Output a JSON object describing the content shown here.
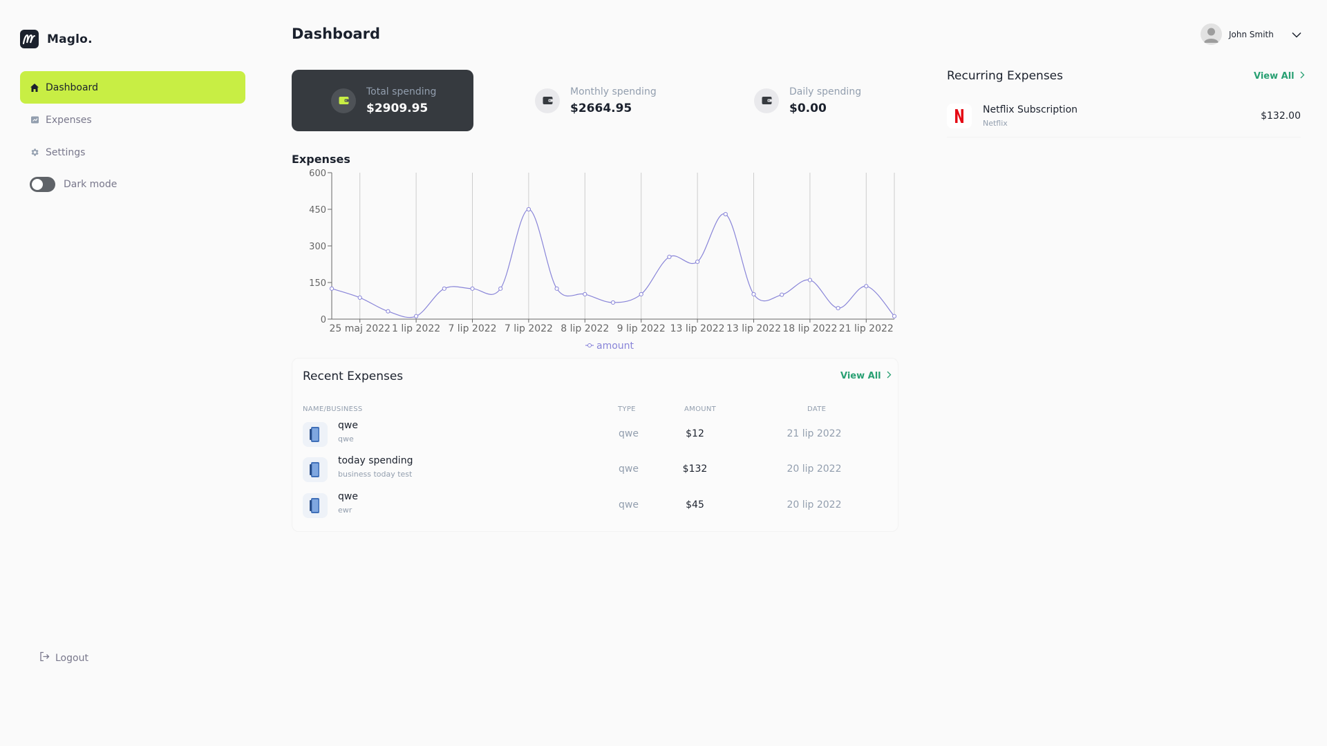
{
  "app": {
    "name": "Maglo."
  },
  "sidebar": {
    "items": [
      {
        "label": "Dashboard",
        "icon": "home-icon",
        "active": true
      },
      {
        "label": "Expenses",
        "icon": "expenses-icon",
        "active": false
      },
      {
        "label": "Settings",
        "icon": "gear-icon",
        "active": false
      }
    ],
    "dark_mode_label": "Dark mode",
    "dark_mode_on": false,
    "logout_label": "Logout"
  },
  "header": {
    "title": "Dashboard",
    "user_name": "John Smith"
  },
  "stats": [
    {
      "label": "Total spending",
      "value": "$2909.95"
    },
    {
      "label": "Monthly spending",
      "value": "$2664.95"
    },
    {
      "label": "Daily spending",
      "value": "$0.00"
    }
  ],
  "chart": {
    "title": "Expenses"
  },
  "chart_data": {
    "type": "line",
    "title": "Expenses",
    "xlabel": "",
    "ylabel": "",
    "ylim": [
      0,
      600
    ],
    "yticks": [
      "0",
      "150",
      "300",
      "450",
      "600"
    ],
    "x": [
      "",
      "25 maj 2022",
      "",
      "1 lip 2022",
      "",
      "7 lip 2022",
      "",
      "7 lip 2022",
      "",
      "8 lip 2022",
      "",
      "9 lip 2022",
      "",
      "13 lip 2022",
      "",
      "13 lip 2022",
      "",
      "18 lip 2022",
      "",
      "21 lip 2022",
      ""
    ],
    "series": [
      {
        "name": "amount",
        "values": [
          125,
          88,
          32,
          12,
          125,
          125,
          125,
          450,
          125,
          102,
          68,
          102,
          255,
          235,
          430,
          102,
          100,
          160,
          45,
          135,
          12
        ]
      }
    ],
    "legend": "bottom",
    "grid": "vertical",
    "colors": {
      "line": "#8884d8",
      "grid": "#cccccc"
    }
  },
  "recent": {
    "title": "Recent Expenses",
    "view_all": "View All",
    "columns": [
      "NAME/BUSINESS",
      "TYPE",
      "AMOUNT",
      "DATE"
    ],
    "rows": [
      {
        "name": "qwe",
        "business": "qwe",
        "type": "qwe",
        "amount": "$12",
        "date": "21 lip 2022"
      },
      {
        "name": "today spending",
        "business": "business today test",
        "type": "qwe",
        "amount": "$132",
        "date": "20 lip 2022"
      },
      {
        "name": "qwe",
        "business": "ewr",
        "type": "qwe",
        "amount": "$45",
        "date": "20 lip 2022"
      }
    ]
  },
  "recurring": {
    "title": "Recurring Expenses",
    "view_all": "View All",
    "items": [
      {
        "name": "Netflix Subscription",
        "sub": "Netflix",
        "amount": "$132.00",
        "logo_letter": "N"
      }
    ]
  },
  "colors": {
    "accent": "#c8ee44",
    "dark_card": "#363a3f",
    "link": "#29a073",
    "chart_line": "#8884d8",
    "netflix": "#e50914"
  }
}
